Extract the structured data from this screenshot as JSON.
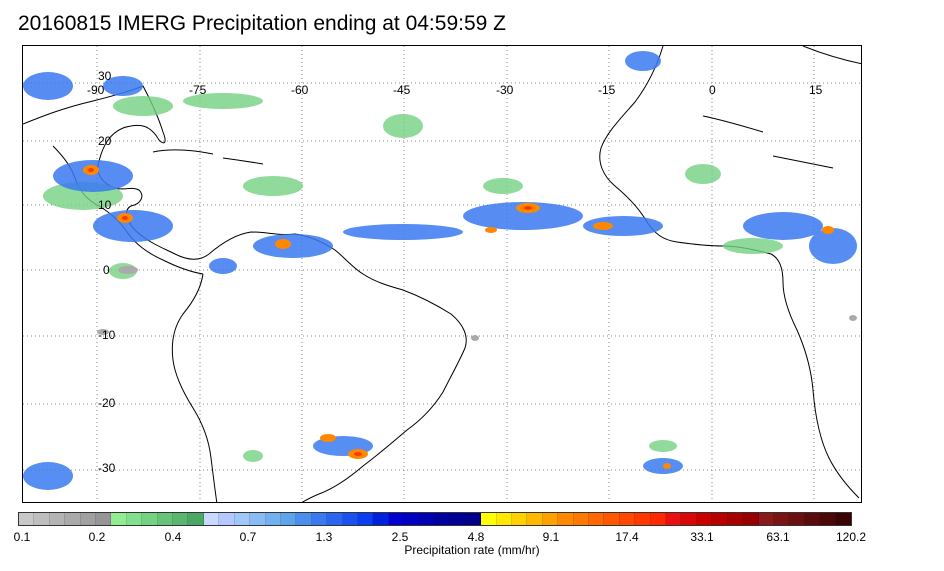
{
  "title": "20160815 IMERG Precipitation ending at 04:59:59 Z",
  "map": {
    "lon_labels": [
      "-90",
      "-75",
      "-60",
      "-45",
      "-30",
      "-15",
      "0",
      "15"
    ],
    "lat_labels": [
      "30",
      "20",
      "10",
      "0",
      "-10",
      "-20",
      "-30"
    ]
  },
  "colorbar": {
    "label": "Precipitation rate (mm/hr)",
    "ticks": [
      "0.1",
      "0.2",
      "0.4",
      "0.7",
      "1.3",
      "2.5",
      "4.8",
      "9.1",
      "17.4",
      "33.1",
      "63.1",
      "120.2"
    ],
    "colors": [
      "#c8c8c8",
      "#bebebe",
      "#b4b4b4",
      "#aaaaaa",
      "#a0a0a0",
      "#969696",
      "#90ee90",
      "#82e08c",
      "#74d282",
      "#66c478",
      "#58b66e",
      "#4aa864",
      "#c8d8ff",
      "#b4c8ff",
      "#9ec8f8",
      "#88bcf4",
      "#72b0f0",
      "#5ca4ec",
      "#4a8ef0",
      "#3a7af0",
      "#2a66f0",
      "#1a52f0",
      "#0a3ef0",
      "#0020e0",
      "#0000d0",
      "#0000c0",
      "#0000b0",
      "#0000a0",
      "#000096",
      "#00008c",
      "#ffff00",
      "#ffe800",
      "#ffd000",
      "#ffb800",
      "#ffa000",
      "#ff8800",
      "#ff7800",
      "#ff6800",
      "#ff5800",
      "#ff4800",
      "#ff3800",
      "#ff2800",
      "#e81010",
      "#d80808",
      "#c80000",
      "#b80000",
      "#a80000",
      "#980000",
      "#8a1a1a",
      "#7a1414",
      "#6a1010",
      "#5a0c0c",
      "#4a0808",
      "#3a0404"
    ]
  }
}
